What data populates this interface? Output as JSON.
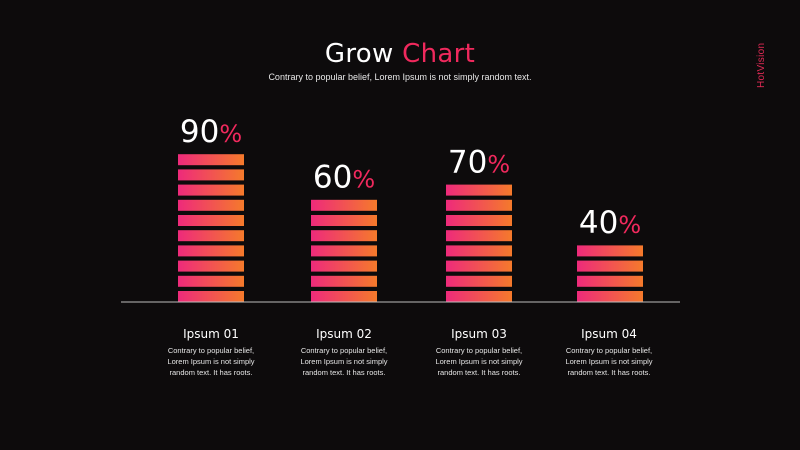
{
  "header": {
    "title_part1": "Grow",
    "title_part2": "Chart",
    "subtitle": "Contrary to popular belief, Lorem Ipsum is not simply random text.",
    "brand": "HotVision"
  },
  "colors": {
    "background": "#0d0b0c",
    "accent": "#f0295d",
    "gradient_left": "#ee2a7b",
    "gradient_right": "#f57a2b",
    "axis": "#bdbdbd"
  },
  "chart_data": {
    "type": "bar",
    "categories": [
      "Ipsum 01",
      "Ipsum 02",
      "Ipsum 03",
      "Ipsum 04"
    ],
    "values": [
      90,
      60,
      70,
      40
    ],
    "value_labels": [
      "90",
      "60",
      "70",
      "40"
    ],
    "unit": "%",
    "ylim": [
      0,
      100
    ],
    "grid": false,
    "descriptions": [
      {
        "line1": "Contrary to popular belief,",
        "line2": "Lorem Ipsum is not simply",
        "line3": "random text. It has roots."
      },
      {
        "line1": "Contrary to popular belief,",
        "line2": "Lorem Ipsum is not simply",
        "line3": "random text. It has roots."
      },
      {
        "line1": "Contrary to popular belief,",
        "line2": "Lorem Ipsum is not simply",
        "line3": "random text. It has roots."
      },
      {
        "line1": "Contrary to popular belief,",
        "line2": "Lorem Ipsum is not simply",
        "line3": "random text. It has roots."
      }
    ]
  }
}
